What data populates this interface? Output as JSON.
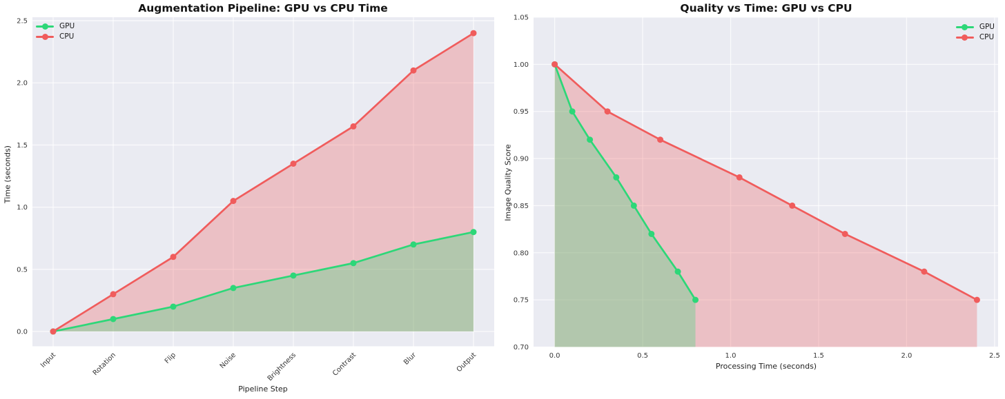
{
  "chart_data": [
    {
      "type": "line",
      "title": "Augmentation Pipeline: GPU vs CPU Time",
      "xlabel": "Pipeline Step",
      "ylabel": "Time (seconds)",
      "x_type": "categorical",
      "categories": [
        "Input",
        "Rotation",
        "Flip",
        "Noise",
        "Brightness",
        "Contrast",
        "Blur",
        "Output"
      ],
      "ylim": [
        -0.119,
        2.528
      ],
      "yticks": [
        0,
        0.5,
        1.0,
        1.5,
        2.0,
        2.5
      ],
      "ytick_labels": [
        "0.0",
        "0.5",
        "1.0",
        "1.5",
        "2.0",
        "2.5"
      ],
      "grid": true,
      "plot_bg": "#eaebf2",
      "grid_color": "#ffffff",
      "fill_opacity": 0.3,
      "fill_baseline": 0,
      "legend_position": "top-left",
      "legend_entries": [
        "GPU",
        "CPU"
      ],
      "series": [
        {
          "name": "GPU",
          "color": "#2dd778",
          "values": [
            0.0,
            0.1,
            0.2,
            0.35,
            0.45,
            0.55,
            0.7,
            0.8
          ]
        },
        {
          "name": "CPU",
          "color": "#f05c5c",
          "values": [
            0.0,
            0.3,
            0.6,
            1.05,
            1.35,
            1.65,
            2.1,
            2.4
          ]
        }
      ]
    },
    {
      "type": "line",
      "title": "Quality vs Time: GPU vs CPU",
      "xlabel": "Processing Time (seconds)",
      "ylabel": "Image Quality Score",
      "x_type": "numeric",
      "xlim": [
        -0.12,
        2.52
      ],
      "ylim": [
        0.7,
        1.05
      ],
      "xticks": [
        0,
        0.5,
        1.0,
        1.5,
        2.0,
        2.5
      ],
      "xtick_labels": [
        "0.0",
        "0.5",
        "1.0",
        "1.5",
        "2.0",
        "2.5"
      ],
      "yticks": [
        0.7,
        0.75,
        0.8,
        0.85,
        0.9,
        0.95,
        1.0,
        1.05
      ],
      "ytick_labels": [
        "0.70",
        "0.75",
        "0.80",
        "0.85",
        "0.90",
        "0.95",
        "1.00",
        "1.05"
      ],
      "grid": true,
      "plot_bg": "#eaebf2",
      "grid_color": "#ffffff",
      "fill_opacity": 0.3,
      "fill_baseline": 0.7,
      "legend_position": "top-right",
      "legend_entries": [
        "GPU",
        "CPU"
      ],
      "series": [
        {
          "name": "GPU",
          "color": "#2dd778",
          "x": [
            0.0,
            0.1,
            0.2,
            0.35,
            0.45,
            0.55,
            0.7,
            0.8
          ],
          "y": [
            1.0,
            0.95,
            0.92,
            0.88,
            0.85,
            0.82,
            0.78,
            0.75
          ]
        },
        {
          "name": "CPU",
          "color": "#f05c5c",
          "x": [
            0.0,
            0.3,
            0.6,
            1.05,
            1.35,
            1.65,
            2.1,
            2.4
          ],
          "y": [
            1.0,
            0.95,
            0.92,
            0.88,
            0.85,
            0.82,
            0.78,
            0.75
          ]
        }
      ]
    }
  ]
}
